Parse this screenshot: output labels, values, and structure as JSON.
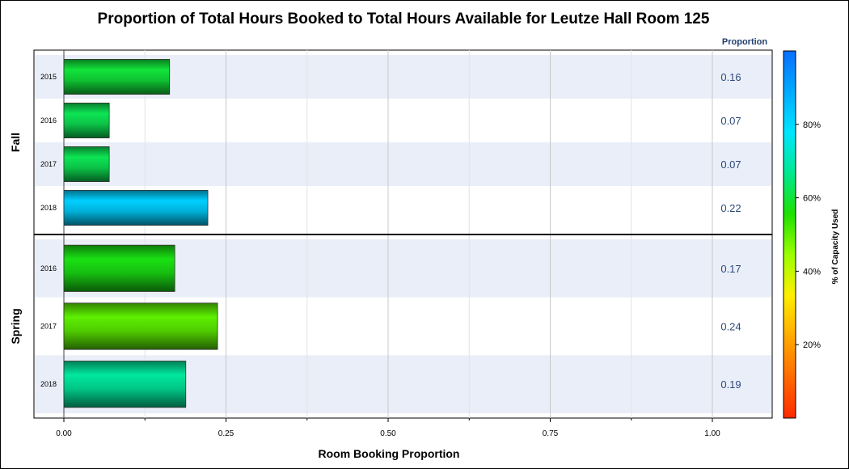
{
  "chart_data": {
    "type": "bar",
    "orientation": "horizontal",
    "title": "Proportion of Total Hours Booked to Total Hours Available for Leutze Hall Room 125",
    "xlabel": "Room Booking Proportion",
    "value_column_header": "Proportion",
    "xlim": [
      0,
      1.0
    ],
    "x_ticks": [
      "0.00",
      "0.25",
      "0.50",
      "0.75",
      "1.00"
    ],
    "grid": true,
    "panels": [
      {
        "label": "Fall",
        "rows": [
          {
            "year": "2015",
            "value": 0.163,
            "value_label": "0.16",
            "color_pct": 0.6
          },
          {
            "year": "2016",
            "value": 0.07,
            "value_label": "0.07",
            "color_pct": 0.62
          },
          {
            "year": "2017",
            "value": 0.07,
            "value_label": "0.07",
            "color_pct": 0.62
          },
          {
            "year": "2018",
            "value": 0.222,
            "value_label": "0.22",
            "color_pct": 0.82
          }
        ]
      },
      {
        "label": "Spring",
        "rows": [
          {
            "year": "2016",
            "value": 0.171,
            "value_label": "0.17",
            "color_pct": 0.57
          },
          {
            "year": "2017",
            "value": 0.237,
            "value_label": "0.24",
            "color_pct": 0.5
          },
          {
            "year": "2018",
            "value": 0.188,
            "value_label": "0.19",
            "color_pct": 0.68
          }
        ]
      }
    ],
    "legend": {
      "title": "% of Capacity Used",
      "position": "right",
      "ticks": [
        "20%",
        "40%",
        "60%",
        "80%"
      ],
      "tick_values": [
        0.2,
        0.4,
        0.6,
        0.8
      ],
      "range": [
        0.0,
        1.0
      ],
      "colors": [
        "#ff2a00",
        "#ff6a00",
        "#ffaa00",
        "#ffee00",
        "#9cff00",
        "#1ee000",
        "#00e890",
        "#00e6ff",
        "#00aaff",
        "#0a6eff"
      ]
    }
  }
}
